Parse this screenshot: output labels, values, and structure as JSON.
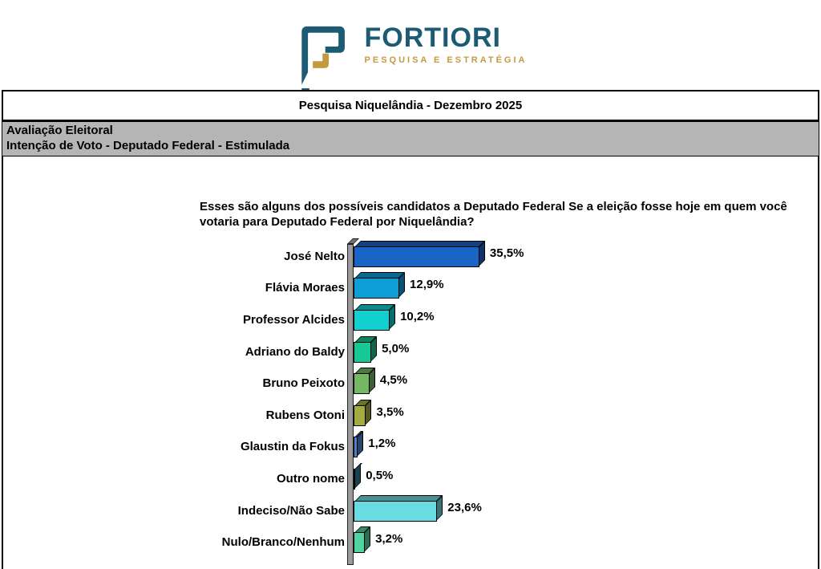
{
  "logo": {
    "brand": "FORTIORI",
    "tagline": "PESQUISA E ESTRATÉGIA",
    "brand_color": "#1d5a73",
    "tagline_color": "#c49a3f"
  },
  "report": {
    "title": "Pesquisa Niquelândia - Dezembro 2025",
    "section_line1": "Avaliação Eleitoral",
    "section_line2": "Intenção de Voto - Deputado Federal - Estimulada",
    "question": "Esses são alguns dos possíveis candidatos a Deputado Federal Se a eleição fosse hoje em quem você votaria para Deputado Federal por Niquelândia?",
    "section_band_color": "#b5b5b5"
  },
  "chart_data": {
    "type": "bar",
    "orientation": "horizontal",
    "style": "3d",
    "title": "Intenção de Voto - Deputado Federal - Estimulada",
    "categories": [
      "José Nelto",
      "Flávia Moraes",
      "Professor Alcides",
      "Adriano do Baldy",
      "Bruno Peixoto",
      "Rubens Otoni",
      "Glaustin da Fokus",
      "Outro nome",
      "Indeciso/Não Sabe",
      "Nulo/Branco/Nenhum"
    ],
    "values": [
      35.5,
      12.9,
      10.2,
      5.0,
      4.5,
      3.5,
      1.2,
      0.5,
      23.6,
      3.2
    ],
    "value_labels": [
      "35,5%",
      "12,9%",
      "10,2%",
      "5,0%",
      "4,5%",
      "3,5%",
      "1,2%",
      "0,5%",
      "23,6%",
      "3,2%"
    ],
    "bar_colors": [
      "#1a64c6",
      "#0d9ed8",
      "#12cfd0",
      "#17c795",
      "#74b863",
      "#a4ab40",
      "#4e82cc",
      "#2d7f9b",
      "#68dce2",
      "#52d4a2"
    ],
    "axis_color": "#9b9b9b",
    "xlim": [
      0,
      40
    ],
    "grid": false,
    "legend": false,
    "value_decimal_separator": ","
  }
}
